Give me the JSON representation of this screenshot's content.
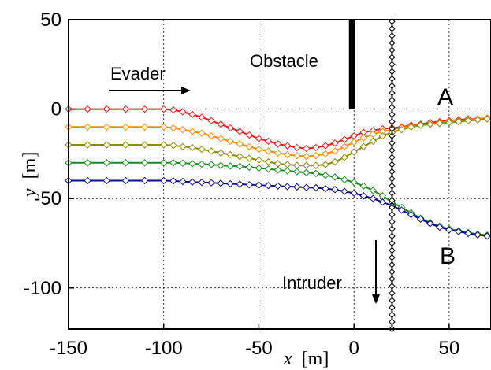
{
  "chart_data": {
    "type": "line",
    "title": "",
    "xlabel": {
      "var": "x",
      "unit": "[m]"
    },
    "ylabel": {
      "var": "y",
      "unit": "[m]"
    },
    "xlim": [
      -150,
      72
    ],
    "ylim": [
      -123,
      50
    ],
    "xticks": [
      -150,
      -100,
      -50,
      0,
      50
    ],
    "yticks": [
      50,
      0,
      -50,
      -100
    ],
    "xtick_labels": [
      "-150",
      "-100",
      "-50",
      "0",
      "50"
    ],
    "ytick_labels": [
      "50",
      "0",
      "-50",
      "-100"
    ],
    "grid": true,
    "colors": {
      "red": "#ee1c1c",
      "orange": "#ff8c00",
      "olive": "#8c8c00",
      "green": "#1a8c1a",
      "blue": "#0a0a8c",
      "obstacle": "#000000",
      "intruder": "#000000"
    },
    "series": [
      {
        "color": "red",
        "points": [
          [
            -150,
            0
          ],
          [
            -140,
            0
          ],
          [
            -130,
            0
          ],
          [
            -120,
            0
          ],
          [
            -110,
            0
          ],
          [
            -100,
            0
          ],
          [
            -95,
            -0.5
          ],
          [
            -90,
            -1.5
          ],
          [
            -85,
            -3
          ],
          [
            -80,
            -4.5
          ],
          [
            -75,
            -6.5
          ],
          [
            -70,
            -8.5
          ],
          [
            -65,
            -10.5
          ],
          [
            -60,
            -12.5
          ],
          [
            -55,
            -14.5
          ],
          [
            -50,
            -16.5
          ],
          [
            -45,
            -18
          ],
          [
            -40,
            -19.5
          ],
          [
            -35,
            -20.5
          ],
          [
            -30,
            -21.5
          ],
          [
            -25,
            -22
          ],
          [
            -20,
            -21.5
          ],
          [
            -15,
            -20.5
          ],
          [
            -10,
            -19
          ],
          [
            -5,
            -17
          ],
          [
            0,
            -15
          ],
          [
            5,
            -13
          ],
          [
            10,
            -12
          ],
          [
            15,
            -11
          ],
          [
            20,
            -10.5
          ],
          [
            25,
            -10
          ],
          [
            30,
            -9
          ],
          [
            35,
            -8.5
          ],
          [
            40,
            -7.5
          ],
          [
            45,
            -7
          ],
          [
            50,
            -6.5
          ],
          [
            55,
            -6
          ],
          [
            60,
            -5.5
          ],
          [
            65,
            -5.5
          ],
          [
            70,
            -5
          ]
        ]
      },
      {
        "color": "orange",
        "points": [
          [
            -150,
            -10
          ],
          [
            -140,
            -10
          ],
          [
            -130,
            -10
          ],
          [
            -120,
            -10
          ],
          [
            -110,
            -10
          ],
          [
            -100,
            -10
          ],
          [
            -95,
            -10.5
          ],
          [
            -90,
            -11.5
          ],
          [
            -85,
            -12.5
          ],
          [
            -80,
            -13.5
          ],
          [
            -75,
            -15
          ],
          [
            -70,
            -16.5
          ],
          [
            -65,
            -18
          ],
          [
            -60,
            -19.5
          ],
          [
            -55,
            -21
          ],
          [
            -50,
            -22.5
          ],
          [
            -45,
            -23.5
          ],
          [
            -40,
            -24.5
          ],
          [
            -35,
            -25.5
          ],
          [
            -30,
            -26
          ],
          [
            -25,
            -26.5
          ],
          [
            -20,
            -26
          ],
          [
            -15,
            -25
          ],
          [
            -10,
            -23.5
          ],
          [
            -5,
            -21
          ],
          [
            0,
            -18.5
          ],
          [
            5,
            -16
          ],
          [
            10,
            -14
          ],
          [
            15,
            -12.5
          ],
          [
            20,
            -11.5
          ],
          [
            25,
            -10.5
          ],
          [
            30,
            -9.5
          ],
          [
            35,
            -9
          ],
          [
            40,
            -8.5
          ],
          [
            45,
            -7.5
          ],
          [
            50,
            -7
          ],
          [
            55,
            -6.5
          ],
          [
            60,
            -6
          ],
          [
            65,
            -5.5
          ],
          [
            70,
            -5
          ]
        ]
      },
      {
        "color": "olive",
        "points": [
          [
            -150,
            -20
          ],
          [
            -140,
            -20
          ],
          [
            -130,
            -20
          ],
          [
            -120,
            -20
          ],
          [
            -110,
            -20
          ],
          [
            -100,
            -20
          ],
          [
            -95,
            -20.3
          ],
          [
            -90,
            -21
          ],
          [
            -85,
            -21.5
          ],
          [
            -80,
            -22.5
          ],
          [
            -75,
            -23.5
          ],
          [
            -70,
            -24.5
          ],
          [
            -65,
            -25.5
          ],
          [
            -60,
            -26.5
          ],
          [
            -55,
            -27.5
          ],
          [
            -50,
            -28.5
          ],
          [
            -45,
            -29.5
          ],
          [
            -40,
            -30.5
          ],
          [
            -35,
            -31
          ],
          [
            -30,
            -31.5
          ],
          [
            -25,
            -31.5
          ],
          [
            -20,
            -31.5
          ],
          [
            -15,
            -31
          ],
          [
            -10,
            -29.5
          ],
          [
            -5,
            -27
          ],
          [
            0,
            -24
          ],
          [
            5,
            -21
          ],
          [
            10,
            -18
          ],
          [
            15,
            -15
          ],
          [
            20,
            -13
          ],
          [
            25,
            -11.5
          ],
          [
            30,
            -10
          ],
          [
            35,
            -9
          ],
          [
            40,
            -8.5
          ],
          [
            45,
            -8
          ],
          [
            50,
            -7.5
          ],
          [
            55,
            -7
          ],
          [
            60,
            -6.5
          ],
          [
            65,
            -6
          ],
          [
            70,
            -5.5
          ]
        ]
      },
      {
        "color": "green",
        "points": [
          [
            -150,
            -30
          ],
          [
            -140,
            -30
          ],
          [
            -130,
            -30
          ],
          [
            -120,
            -30
          ],
          [
            -110,
            -30
          ],
          [
            -100,
            -30
          ],
          [
            -95,
            -30
          ],
          [
            -90,
            -30.2
          ],
          [
            -85,
            -30.5
          ],
          [
            -80,
            -30.8
          ],
          [
            -75,
            -31
          ],
          [
            -70,
            -31.5
          ],
          [
            -65,
            -31.8
          ],
          [
            -60,
            -32
          ],
          [
            -55,
            -32.5
          ],
          [
            -50,
            -33
          ],
          [
            -45,
            -33.5
          ],
          [
            -40,
            -34
          ],
          [
            -35,
            -34.5
          ],
          [
            -30,
            -35
          ],
          [
            -25,
            -35.5
          ],
          [
            -20,
            -36
          ],
          [
            -15,
            -37
          ],
          [
            -10,
            -38
          ],
          [
            -5,
            -39.5
          ],
          [
            0,
            -41
          ],
          [
            5,
            -43
          ],
          [
            10,
            -45.5
          ],
          [
            15,
            -48.5
          ],
          [
            20,
            -52
          ],
          [
            25,
            -55
          ],
          [
            30,
            -58
          ],
          [
            35,
            -61
          ],
          [
            40,
            -63.5
          ],
          [
            45,
            -65.5
          ],
          [
            50,
            -67
          ],
          [
            55,
            -68
          ],
          [
            60,
            -69
          ],
          [
            65,
            -70
          ],
          [
            70,
            -70.5
          ]
        ]
      },
      {
        "color": "blue",
        "points": [
          [
            -150,
            -40
          ],
          [
            -140,
            -40
          ],
          [
            -130,
            -40
          ],
          [
            -120,
            -40
          ],
          [
            -110,
            -40
          ],
          [
            -100,
            -40
          ],
          [
            -95,
            -40.2
          ],
          [
            -90,
            -40.5
          ],
          [
            -85,
            -40.8
          ],
          [
            -80,
            -41
          ],
          [
            -75,
            -41.2
          ],
          [
            -70,
            -41.5
          ],
          [
            -65,
            -41.8
          ],
          [
            -60,
            -42
          ],
          [
            -55,
            -42.3
          ],
          [
            -50,
            -42.5
          ],
          [
            -45,
            -42.8
          ],
          [
            -40,
            -43
          ],
          [
            -35,
            -43.3
          ],
          [
            -30,
            -43.5
          ],
          [
            -25,
            -43.8
          ],
          [
            -20,
            -44
          ],
          [
            -15,
            -44.5
          ],
          [
            -10,
            -45
          ],
          [
            -5,
            -46
          ],
          [
            0,
            -47
          ],
          [
            5,
            -48.5
          ],
          [
            10,
            -50
          ],
          [
            15,
            -52
          ],
          [
            20,
            -54
          ],
          [
            25,
            -56.5
          ],
          [
            30,
            -59
          ],
          [
            35,
            -61.5
          ],
          [
            40,
            -64
          ],
          [
            45,
            -66
          ],
          [
            50,
            -67.5
          ],
          [
            55,
            -68.5
          ],
          [
            60,
            -69.5
          ],
          [
            65,
            -70.3
          ],
          [
            70,
            -71
          ]
        ]
      }
    ],
    "obstacle": {
      "x": -1,
      "y_from": 0,
      "y_to": 50
    },
    "intruder": {
      "x": 20,
      "y_from": -123,
      "y_to": 50,
      "marker_step": 4
    },
    "annotations": {
      "evader": "Evader",
      "obstacle": "Obstacle",
      "intruder": "Intruder",
      "label_a": "A",
      "label_b": "B"
    }
  }
}
